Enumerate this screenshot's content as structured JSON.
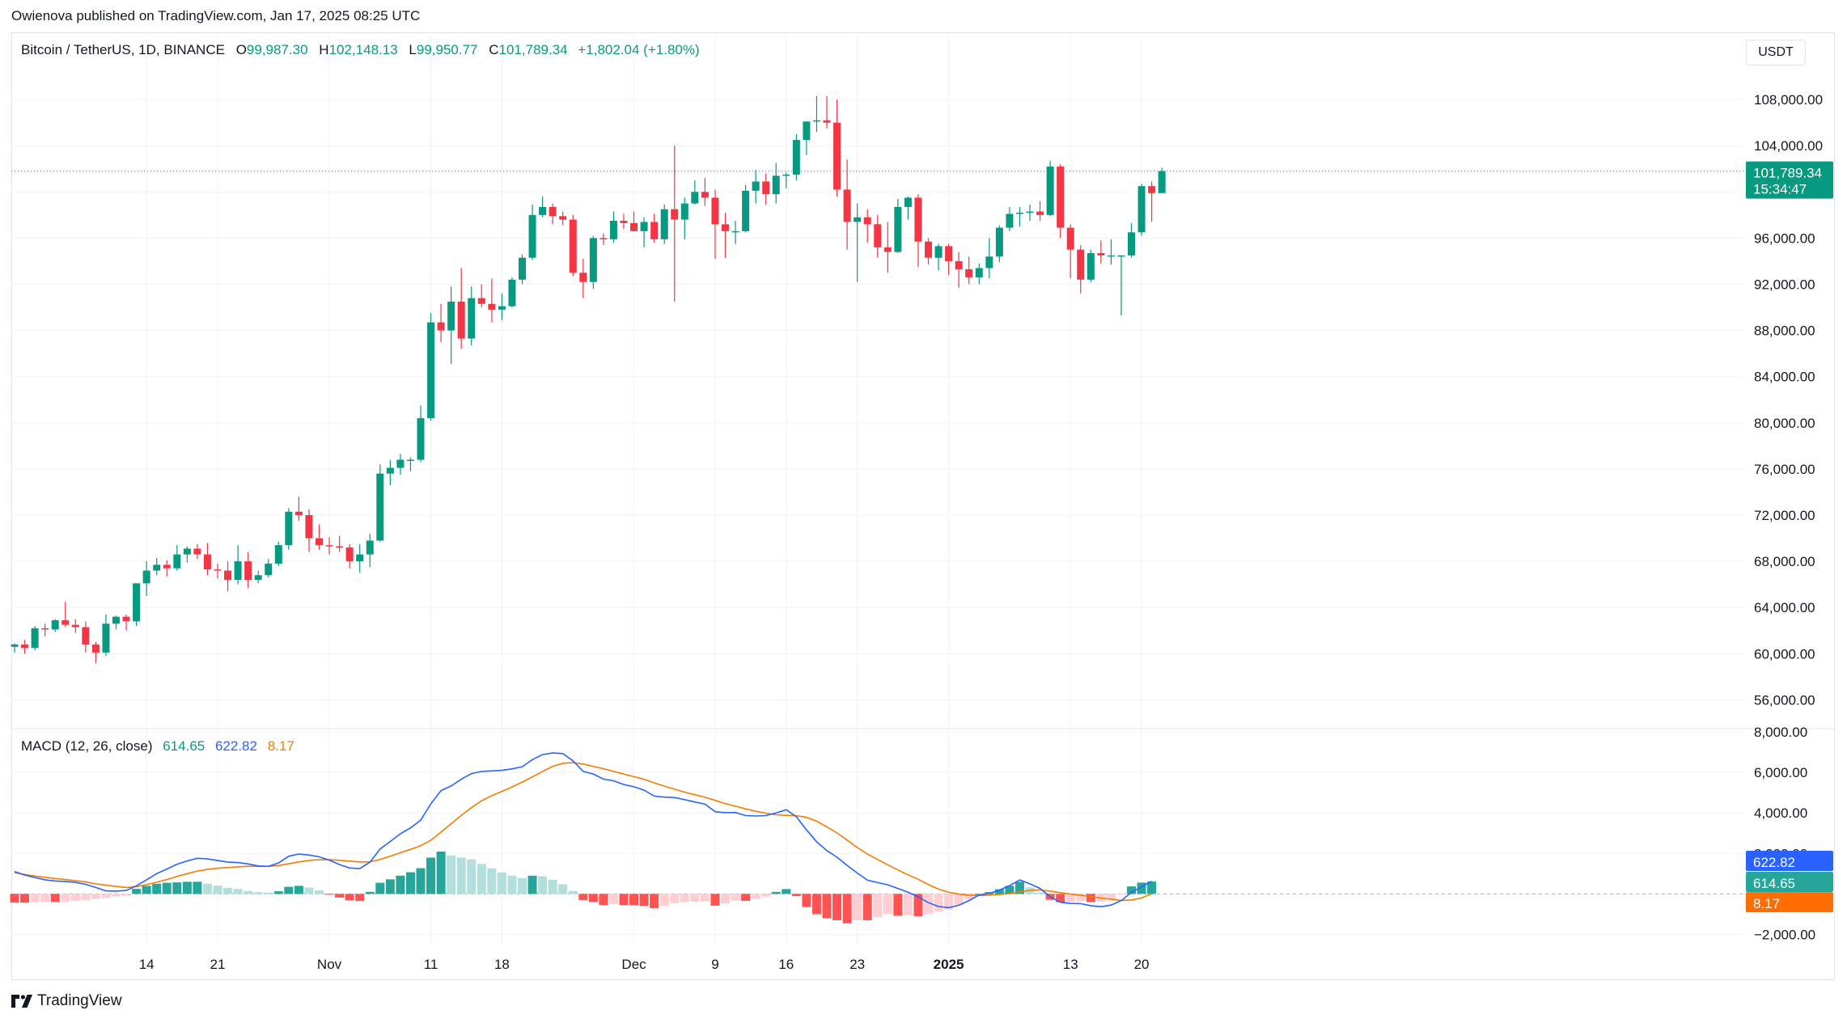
{
  "publisher_line": "Owienova published on TradingView.com, Jan 17, 2025 08:25 UTC",
  "legend": {
    "symbol": "Bitcoin / TetherUS, 1D, BINANCE",
    "open_label": "O",
    "open": "99,987.30",
    "high_label": "H",
    "high": "102,148.13",
    "low_label": "L",
    "low": "99,950.77",
    "close_label": "C",
    "close": "101,789.34",
    "change": "+1,802.04 (+1.80%)"
  },
  "currency_button": "USDT",
  "price_tag": {
    "price": "101,789.34",
    "countdown": "15:34:47"
  },
  "macd_legend": {
    "title": "MACD (12, 26, close)",
    "histogram": "614.65",
    "macd": "622.82",
    "signal": "8.17"
  },
  "macd_tags": {
    "macd": "622.82",
    "histogram": "614.65",
    "signal": "8.17"
  },
  "brand": "TradingView",
  "colors": {
    "up": "#089981",
    "down": "#f23645",
    "macd": "#2962ff",
    "signal": "#f57c00",
    "hist_up_light": "#b2dfdb",
    "hist_down_light": "#ffcdd2"
  },
  "chart_data": {
    "type": "candlestick",
    "price_axis": {
      "range": [
        54000,
        112000
      ],
      "ticks": [
        56000,
        60000,
        64000,
        68000,
        72000,
        76000,
        80000,
        84000,
        88000,
        92000,
        96000,
        100000,
        104000,
        108000
      ],
      "tick_labels": [
        "56,000.00",
        "60,000.00",
        "64,000.00",
        "68,000.00",
        "72,000.00",
        "76,000.00",
        "80,000.00",
        "84,000.00",
        "88,000.00",
        "92,000.00",
        "96,000.00",
        "100,000.00",
        "104,000.00",
        "108,000.00"
      ]
    },
    "macd_axis": {
      "range": [
        -2500,
        8200
      ],
      "ticks": [
        -2000,
        0,
        2000,
        4000,
        6000,
        8000
      ],
      "tick_labels": [
        "−2,000.00",
        "0",
        "2,000.00",
        "4,000.00",
        "6,000.00",
        "8,000.00"
      ]
    },
    "time_axis": {
      "labels": [
        "14",
        "21",
        "Nov",
        "11",
        "18",
        "Dec",
        "9",
        "16",
        "23",
        "2025",
        "13",
        "20"
      ],
      "label_bar_index": [
        13,
        20,
        31,
        41,
        48,
        61,
        69,
        76,
        83,
        92,
        104,
        111
      ],
      "bold": [
        "2025"
      ]
    },
    "candles": [
      [
        60600,
        60900,
        60100,
        60800
      ],
      [
        60800,
        61200,
        60000,
        60500
      ],
      [
        60500,
        62400,
        60300,
        62200
      ],
      [
        62200,
        62600,
        61500,
        62100
      ],
      [
        62100,
        63000,
        61900,
        62900
      ],
      [
        62900,
        64500,
        62300,
        62500
      ],
      [
        62500,
        63000,
        61800,
        62300
      ],
      [
        62300,
        62800,
        60100,
        60800
      ],
      [
        60800,
        61000,
        59200,
        60100
      ],
      [
        60100,
        63400,
        59800,
        62600
      ],
      [
        62600,
        63300,
        62100,
        63200
      ],
      [
        63200,
        63400,
        62000,
        62800
      ],
      [
        62800,
        66000,
        62400,
        66100
      ],
      [
        66100,
        68000,
        65000,
        67200
      ],
      [
        67200,
        68300,
        66800,
        67700
      ],
      [
        67700,
        68100,
        66700,
        67400
      ],
      [
        67400,
        69400,
        67200,
        68600
      ],
      [
        68600,
        69300,
        67900,
        69100
      ],
      [
        69100,
        69500,
        68200,
        68600
      ],
      [
        68600,
        69600,
        66800,
        67300
      ],
      [
        67300,
        67800,
        66500,
        67200
      ],
      [
        67200,
        68000,
        65400,
        66400
      ],
      [
        66400,
        69400,
        66000,
        68000
      ],
      [
        68000,
        68800,
        65700,
        66400
      ],
      [
        66400,
        67200,
        66100,
        66800
      ],
      [
        66800,
        68200,
        66600,
        67800
      ],
      [
        67800,
        69700,
        67600,
        69400
      ],
      [
        69400,
        72600,
        69000,
        72300
      ],
      [
        72300,
        73600,
        71500,
        72000
      ],
      [
        72000,
        72500,
        68800,
        70000
      ],
      [
        70000,
        71200,
        69000,
        69400
      ],
      [
        69400,
        70100,
        68600,
        69300
      ],
      [
        69300,
        70200,
        68800,
        69200
      ],
      [
        69200,
        69500,
        67400,
        68000
      ],
      [
        68000,
        69500,
        67000,
        68600
      ],
      [
        68600,
        70400,
        67500,
        69800
      ],
      [
        69800,
        76400,
        69700,
        75600
      ],
      [
        75600,
        76800,
        74600,
        76100
      ],
      [
        76100,
        77300,
        75500,
        76800
      ],
      [
        76800,
        77000,
        75800,
        76800
      ],
      [
        76800,
        81500,
        76600,
        80400
      ],
      [
        80400,
        89500,
        80200,
        88700
      ],
      [
        88700,
        90300,
        87000,
        88000
      ],
      [
        88000,
        91800,
        85100,
        90500
      ],
      [
        90500,
        93400,
        86400,
        87300
      ],
      [
        87300,
        91800,
        86700,
        90800
      ],
      [
        90800,
        92000,
        90000,
        90300
      ],
      [
        90300,
        92500,
        88700,
        89800
      ],
      [
        89800,
        91200,
        88900,
        90100
      ],
      [
        90100,
        92600,
        90000,
        92400
      ],
      [
        92400,
        94600,
        92000,
        94300
      ],
      [
        94300,
        98900,
        94100,
        98000
      ],
      [
        98000,
        99600,
        97800,
        98700
      ],
      [
        98700,
        99000,
        97200,
        97900
      ],
      [
        97900,
        98300,
        97100,
        97600
      ],
      [
        97600,
        98000,
        92700,
        93000
      ],
      [
        93000,
        94200,
        90800,
        92200
      ],
      [
        92200,
        96200,
        91600,
        96000
      ],
      [
        96000,
        96400,
        95400,
        95900
      ],
      [
        95900,
        98300,
        95600,
        97500
      ],
      [
        97500,
        98100,
        96800,
        97300
      ],
      [
        97300,
        98300,
        96600,
        96600
      ],
      [
        96600,
        97800,
        95200,
        97400
      ],
      [
        97400,
        98100,
        95600,
        95900
      ],
      [
        95900,
        98900,
        95500,
        98500
      ],
      [
        98500,
        104000,
        90500,
        97600
      ],
      [
        97600,
        99500,
        95900,
        99000
      ],
      [
        99000,
        101000,
        98900,
        100000
      ],
      [
        100000,
        101200,
        98800,
        99500
      ],
      [
        99500,
        100200,
        94200,
        97200
      ],
      [
        97200,
        98200,
        94300,
        96600
      ],
      [
        96600,
        97500,
        95500,
        96600
      ],
      [
        96600,
        100600,
        96500,
        100100
      ],
      [
        100100,
        101900,
        99000,
        100900
      ],
      [
        100900,
        101600,
        98900,
        99800
      ],
      [
        99800,
        102500,
        99000,
        101400
      ],
      [
        101400,
        101700,
        100300,
        101500
      ],
      [
        101500,
        105000,
        101000,
        104500
      ],
      [
        104500,
        106000,
        103200,
        106100
      ],
      [
        106100,
        108300,
        105200,
        106200
      ],
      [
        106200,
        108300,
        105500,
        106000
      ],
      [
        106000,
        108000,
        99600,
        100200
      ],
      [
        100200,
        102800,
        95000,
        97400
      ],
      [
        97400,
        99000,
        92200,
        97800
      ],
      [
        97800,
        98500,
        95600,
        97200
      ],
      [
        97200,
        98000,
        94300,
        95200
      ],
      [
        95200,
        97400,
        93000,
        94800
      ],
      [
        94800,
        99400,
        94700,
        98700
      ],
      [
        98700,
        99600,
        97600,
        99500
      ],
      [
        99500,
        99800,
        93500,
        95700
      ],
      [
        95700,
        96000,
        93700,
        94300
      ],
      [
        94300,
        95500,
        93200,
        95300
      ],
      [
        95300,
        95500,
        92800,
        94000
      ],
      [
        94000,
        94800,
        91700,
        93300
      ],
      [
        93300,
        94400,
        92000,
        92600
      ],
      [
        92600,
        93800,
        92000,
        93400
      ],
      [
        93400,
        96000,
        92500,
        94400
      ],
      [
        94400,
        97100,
        93900,
        96900
      ],
      [
        96900,
        98700,
        96600,
        98100
      ],
      [
        98100,
        98700,
        97000,
        98200
      ],
      [
        98200,
        98900,
        97500,
        98300
      ],
      [
        98300,
        99200,
        97500,
        98000
      ],
      [
        98000,
        102700,
        97900,
        102200
      ],
      [
        102200,
        102400,
        96000,
        96900
      ],
      [
        96900,
        97200,
        92500,
        95000
      ],
      [
        95000,
        95400,
        91200,
        92400
      ],
      [
        92400,
        95000,
        92200,
        94700
      ],
      [
        94700,
        95800,
        93800,
        94500
      ],
      [
        94500,
        95900,
        93700,
        94500
      ],
      [
        94500,
        94500,
        89300,
        94500
      ],
      [
        94500,
        97300,
        94300,
        96500
      ],
      [
        96500,
        100700,
        96200,
        100500
      ],
      [
        100500,
        100900,
        97400,
        99900
      ],
      [
        99900,
        102100,
        99900,
        101800
      ]
    ],
    "macd": [
      1100,
      930,
      810,
      700,
      640,
      620,
      570,
      470,
      320,
      150,
      140,
      170,
      400,
      700,
      1000,
      1230,
      1470,
      1630,
      1760,
      1730,
      1650,
      1570,
      1550,
      1480,
      1380,
      1360,
      1530,
      1860,
      1970,
      1920,
      1830,
      1670,
      1450,
      1280,
      1250,
      1570,
      2220,
      2590,
      2970,
      3260,
      3640,
      4450,
      5100,
      5330,
      5660,
      5940,
      6050,
      6070,
      6100,
      6170,
      6280,
      6630,
      6880,
      6960,
      6930,
      6570,
      6050,
      5920,
      5670,
      5580,
      5400,
      5290,
      5120,
      4830,
      4780,
      4760,
      4650,
      4540,
      4430,
      4060,
      4010,
      4020,
      3870,
      3850,
      3870,
      4000,
      4160,
      3810,
      3160,
      2570,
      2140,
      1810,
      1410,
      1030,
      680,
      560,
      450,
      270,
      80,
      -140,
      -430,
      -620,
      -680,
      -560,
      -330,
      -50,
      20,
      190,
      410,
      690,
      500,
      270,
      -150,
      -410,
      -470,
      -480,
      -580,
      -630,
      -550,
      -330,
      70,
      360,
      622.82
    ],
    "signal": [
      1050,
      960,
      880,
      820,
      760,
      710,
      650,
      590,
      500,
      430,
      370,
      320,
      360,
      460,
      580,
      710,
      860,
      1000,
      1130,
      1210,
      1270,
      1300,
      1340,
      1360,
      1360,
      1360,
      1400,
      1490,
      1580,
      1650,
      1690,
      1690,
      1660,
      1620,
      1580,
      1580,
      1700,
      1860,
      2030,
      2200,
      2380,
      2650,
      3050,
      3460,
      3880,
      4260,
      4600,
      4850,
      5060,
      5280,
      5520,
      5780,
      6050,
      6300,
      6450,
      6480,
      6410,
      6300,
      6180,
      6050,
      5920,
      5790,
      5660,
      5480,
      5320,
      5170,
      5020,
      4900,
      4770,
      4620,
      4460,
      4330,
      4200,
      4080,
      3980,
      3910,
      3880,
      3860,
      3780,
      3590,
      3310,
      3010,
      2660,
      2290,
      1970,
      1700,
      1440,
      1180,
      940,
      720,
      460,
      240,
      80,
      -10,
      -60,
      -80,
      -60,
      -30,
      20,
      100,
      180,
      200,
      140,
      60,
      -10,
      -70,
      -130,
      -200,
      -270,
      -320,
      -300,
      -200,
      8.17
    ],
    "histogram": [
      -430,
      -430,
      -410,
      -400,
      -400,
      -390,
      -350,
      -300,
      -250,
      -200,
      -120,
      -90,
      250,
      400,
      500,
      550,
      570,
      600,
      600,
      500,
      410,
      300,
      250,
      150,
      90,
      70,
      130,
      350,
      400,
      310,
      170,
      -40,
      -180,
      -320,
      -350,
      100,
      550,
      720,
      900,
      1070,
      1270,
      1790,
      2090,
      1900,
      1800,
      1700,
      1480,
      1260,
      1060,
      900,
      780,
      900,
      870,
      700,
      480,
      150,
      -300,
      -400,
      -550,
      -500,
      -550,
      -560,
      -600,
      -700,
      -600,
      -450,
      -400,
      -380,
      -370,
      -580,
      -470,
      -330,
      -340,
      -250,
      -130,
      100,
      240,
      -110,
      -650,
      -1000,
      -1200,
      -1300,
      -1450,
      -1300,
      -1300,
      -1150,
      -1000,
      -1080,
      -1050,
      -1100,
      -1000,
      -860,
      -770,
      -560,
      -270,
      0,
      90,
      230,
      400,
      600,
      320,
      70,
      -290,
      -410,
      -400,
      -360,
      -400,
      -380,
      -280,
      -40,
      370,
      560,
      614.65
    ]
  }
}
